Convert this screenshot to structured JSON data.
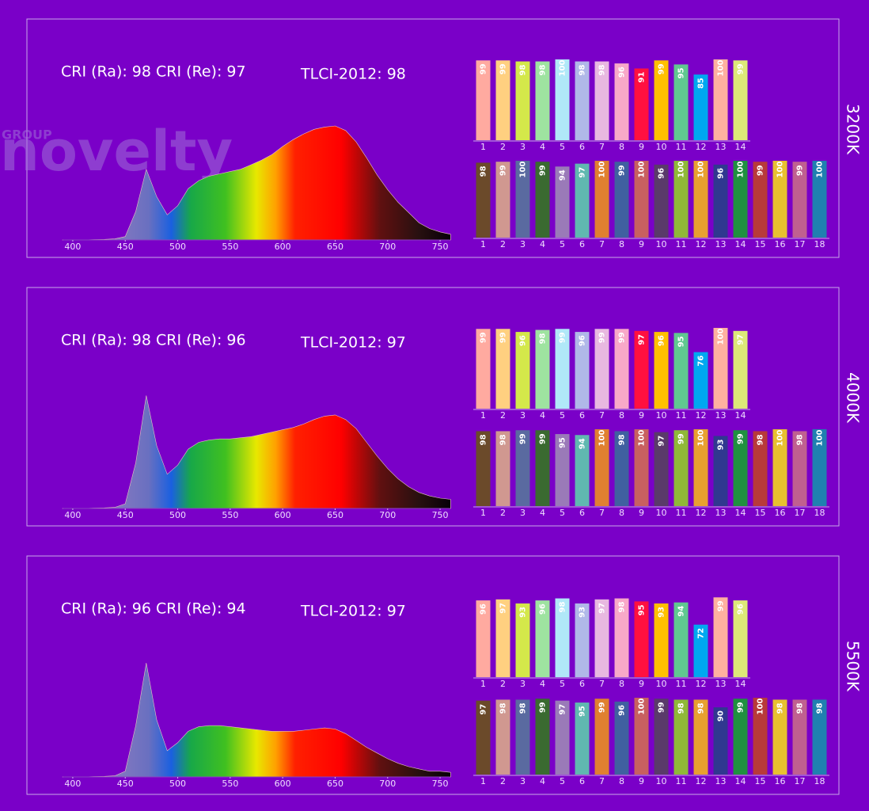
{
  "chart_data": [
    {
      "type": "area",
      "title": "3200K",
      "annotations": [
        "CRI (Ra): 98",
        "CRI (Re): 97",
        "TLCI-2012: 98"
      ],
      "watermark": [
        "GROUP",
        "novelty"
      ],
      "x": [
        390,
        400,
        410,
        420,
        430,
        440,
        450,
        460,
        470,
        480,
        490,
        500,
        510,
        520,
        530,
        540,
        550,
        560,
        570,
        580,
        590,
        600,
        610,
        620,
        630,
        640,
        650,
        660,
        670,
        680,
        690,
        700,
        710,
        720,
        730,
        740,
        750,
        760
      ],
      "values": [
        0,
        0,
        0,
        0.3,
        0.5,
        1,
        3,
        25,
        62,
        38,
        22,
        30,
        45,
        52,
        56,
        58,
        60,
        62,
        66,
        70,
        75,
        82,
        88,
        93,
        97,
        99,
        100,
        96,
        86,
        72,
        57,
        44,
        33,
        24,
        15,
        10,
        7,
        5
      ],
      "xlim": [
        391,
        759
      ],
      "ylim": [
        0,
        100
      ],
      "xticks": [
        400,
        450,
        500,
        550,
        600,
        650,
        700,
        750
      ]
    },
    {
      "type": "bar",
      "categories": [
        "1",
        "2",
        "3",
        "4",
        "5",
        "6",
        "7",
        "8",
        "9",
        "10",
        "11",
        "12",
        "13",
        "14"
      ],
      "values": [
        99,
        99,
        98,
        98,
        100,
        98,
        98,
        96,
        91,
        99,
        95,
        85,
        100,
        99
      ],
      "colors": [
        "#ffaaa0",
        "#ffd080",
        "#d4e84a",
        "#9ee3a0",
        "#b0e8f8",
        "#b0b8e8",
        "#e8b8e0",
        "#f8a8c8",
        "#ff1040",
        "#ffc000",
        "#60c890",
        "#00a8f0",
        "#ffb0a0",
        "#dde878"
      ],
      "ylim": [
        20,
        100
      ]
    },
    {
      "type": "bar",
      "categories": [
        "1",
        "2",
        "3",
        "4",
        "5",
        "6",
        "7",
        "8",
        "9",
        "10",
        "11",
        "12",
        "13",
        "14",
        "15",
        "16",
        "17",
        "18"
      ],
      "values": [
        98,
        99,
        100,
        99,
        94,
        97,
        100,
        99,
        100,
        96,
        100,
        100,
        96,
        100,
        99,
        100,
        99,
        100
      ],
      "colors": [
        "#6b4a2a",
        "#d09890",
        "#5a6aa0",
        "#3a6a30",
        "#9a7ab8",
        "#60b8b0",
        "#e08030",
        "#4060a0",
        "#c86060",
        "#5a3a6a",
        "#90b838",
        "#e8a030",
        "#303890",
        "#209040",
        "#b83a3a",
        "#e8c030",
        "#c06090",
        "#2080b0"
      ],
      "ylim": [
        20,
        100
      ]
    },
    {
      "type": "area",
      "title": "4000K",
      "annotations": [
        "CRI (Ra): 98",
        "CRI (Re): 96",
        "TLCI-2012: 97"
      ],
      "x": [
        390,
        400,
        410,
        420,
        430,
        440,
        450,
        460,
        470,
        480,
        490,
        500,
        510,
        520,
        530,
        540,
        550,
        560,
        570,
        580,
        590,
        600,
        610,
        620,
        630,
        640,
        650,
        660,
        670,
        680,
        690,
        700,
        710,
        720,
        730,
        740,
        750,
        760
      ],
      "values": [
        0,
        0,
        0,
        0.3,
        0.5,
        1,
        4,
        40,
        99,
        55,
        30,
        38,
        52,
        58,
        60,
        61,
        61,
        62,
        63,
        65,
        67,
        69,
        71,
        74,
        78,
        81,
        82,
        78,
        70,
        58,
        46,
        35,
        26,
        19,
        14,
        11,
        9,
        8
      ],
      "xlim": [
        391,
        759
      ],
      "ylim": [
        0,
        100
      ],
      "xticks": [
        400,
        450,
        500,
        550,
        600,
        650,
        700,
        750
      ]
    },
    {
      "type": "bar",
      "categories": [
        "1",
        "2",
        "3",
        "4",
        "5",
        "6",
        "7",
        "8",
        "9",
        "10",
        "11",
        "12",
        "13",
        "14"
      ],
      "values": [
        99,
        99,
        96,
        98,
        99,
        96,
        99,
        99,
        97,
        96,
        95,
        76,
        100,
        97
      ],
      "colors": [
        "#ffaaa0",
        "#ffd080",
        "#d4e84a",
        "#9ee3a0",
        "#b0e8f8",
        "#b0b8e8",
        "#e8b8e0",
        "#f8a8c8",
        "#ff1040",
        "#ffc000",
        "#60c890",
        "#00a8f0",
        "#ffb0a0",
        "#dde878"
      ],
      "ylim": [
        20,
        100
      ]
    },
    {
      "type": "bar",
      "categories": [
        "1",
        "2",
        "3",
        "4",
        "5",
        "6",
        "7",
        "8",
        "9",
        "10",
        "11",
        "12",
        "13",
        "14",
        "15",
        "16",
        "17",
        "18"
      ],
      "values": [
        98,
        98,
        99,
        99,
        95,
        94,
        100,
        98,
        100,
        97,
        99,
        100,
        93,
        99,
        98,
        100,
        98,
        100
      ],
      "colors": [
        "#6b4a2a",
        "#d09890",
        "#5a6aa0",
        "#3a6a30",
        "#9a7ab8",
        "#60b8b0",
        "#e08030",
        "#4060a0",
        "#c86060",
        "#5a3a6a",
        "#90b838",
        "#e8a030",
        "#303890",
        "#209040",
        "#b83a3a",
        "#e8c030",
        "#c06090",
        "#2080b0"
      ],
      "ylim": [
        20,
        100
      ]
    },
    {
      "type": "area",
      "title": "5500K",
      "annotations": [
        "CRI (Ra): 96",
        "CRI (Re): 94",
        "TLCI-2012: 97"
      ],
      "x": [
        390,
        400,
        410,
        420,
        430,
        440,
        450,
        460,
        470,
        480,
        490,
        500,
        510,
        520,
        530,
        540,
        550,
        560,
        570,
        580,
        590,
        600,
        610,
        620,
        630,
        640,
        650,
        660,
        670,
        680,
        690,
        700,
        710,
        720,
        730,
        740,
        750,
        760
      ],
      "values": [
        0,
        0,
        0,
        0.3,
        0.5,
        1,
        5,
        45,
        100,
        50,
        23,
        30,
        40,
        44,
        45,
        45,
        44,
        43,
        42,
        41,
        40,
        40,
        40,
        41,
        42,
        43,
        42,
        38,
        32,
        26,
        21,
        16,
        12,
        9,
        7,
        5,
        5,
        4
      ],
      "xlim": [
        391,
        759
      ],
      "ylim": [
        0,
        100
      ],
      "xticks": [
        400,
        450,
        500,
        550,
        600,
        650,
        700,
        750
      ]
    },
    {
      "type": "bar",
      "categories": [
        "1",
        "2",
        "3",
        "4",
        "5",
        "6",
        "7",
        "8",
        "9",
        "10",
        "11",
        "12",
        "13",
        "14"
      ],
      "values": [
        96,
        97,
        93,
        96,
        98,
        93,
        97,
        98,
        95,
        93,
        94,
        72,
        99,
        96
      ],
      "colors": [
        "#ffaaa0",
        "#ffd080",
        "#d4e84a",
        "#9ee3a0",
        "#b0e8f8",
        "#b0b8e8",
        "#e8b8e0",
        "#f8a8c8",
        "#ff1040",
        "#ffc000",
        "#60c890",
        "#00a8f0",
        "#ffb0a0",
        "#dde878"
      ],
      "ylim": [
        20,
        100
      ]
    },
    {
      "type": "bar",
      "categories": [
        "1",
        "2",
        "3",
        "4",
        "5",
        "6",
        "7",
        "8",
        "9",
        "10",
        "11",
        "12",
        "13",
        "14",
        "15",
        "16",
        "17",
        "18"
      ],
      "values": [
        97,
        98,
        98,
        99,
        97,
        95,
        99,
        96,
        100,
        99,
        98,
        98,
        90,
        99,
        100,
        98,
        98,
        98
      ],
      "colors": [
        "#6b4a2a",
        "#d09890",
        "#5a6aa0",
        "#3a6a30",
        "#9a7ab8",
        "#60b8b0",
        "#e08030",
        "#4060a0",
        "#c86060",
        "#5a3a6a",
        "#90b838",
        "#e8a030",
        "#303890",
        "#209040",
        "#b83a3a",
        "#e8c030",
        "#c06090",
        "#2080b0"
      ],
      "ylim": [
        20,
        100
      ]
    }
  ]
}
